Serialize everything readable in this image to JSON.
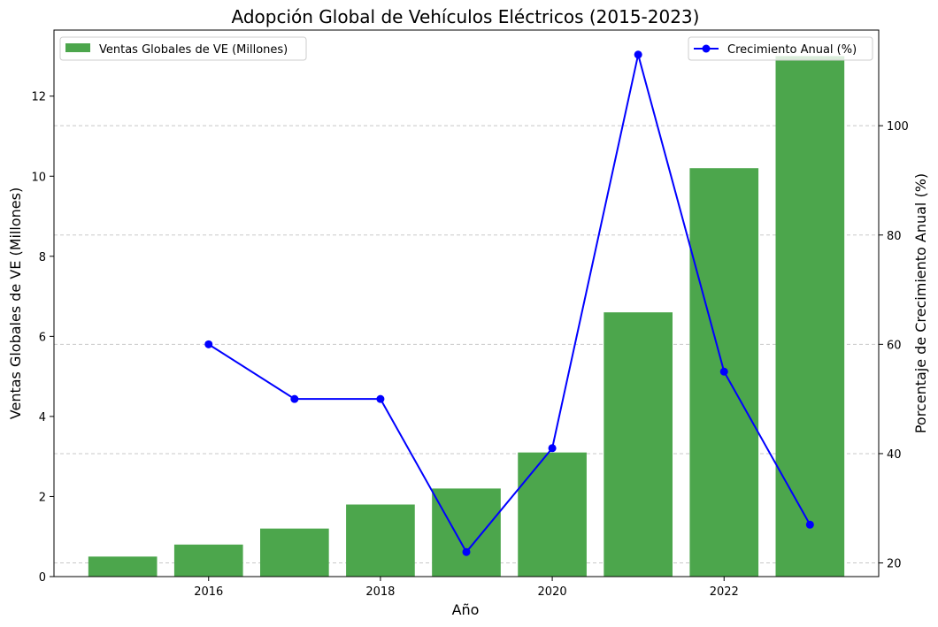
{
  "chart_data": {
    "type": "bar+line",
    "title": "Adopción Global de Vehículos Eléctricos (2015-2023)",
    "xlabel": "Año",
    "ylabel_left": "Ventas Globales de VE (Millones)",
    "ylabel_right": "Porcentaje de Crecimiento Anual (%)",
    "x": [
      2015,
      2016,
      2017,
      2018,
      2019,
      2020,
      2021,
      2022,
      2023
    ],
    "x_ticks": [
      2016,
      2018,
      2020,
      2022
    ],
    "xlim": [
      2014.2,
      2023.8
    ],
    "ylim_left": [
      0,
      13.65
    ],
    "yticks_left": [
      0,
      2,
      4,
      6,
      8,
      10,
      12
    ],
    "ylim_right": [
      17.5,
      117.5
    ],
    "yticks_right": [
      20,
      40,
      60,
      80,
      100
    ],
    "grid": "y-dashed-right-axis",
    "series": [
      {
        "name": "Ventas Globales de VE (Millones)",
        "type": "bar",
        "axis": "left",
        "color": "#4ca64c",
        "x": [
          2015,
          2016,
          2017,
          2018,
          2019,
          2020,
          2021,
          2022,
          2023
        ],
        "values": [
          0.5,
          0.8,
          1.2,
          1.8,
          2.2,
          3.1,
          6.6,
          10.2,
          13.0
        ],
        "legend": "upper-left"
      },
      {
        "name": "Crecimiento Anual (%)",
        "type": "line",
        "axis": "right",
        "color": "#0000ff",
        "marker": "circle",
        "x": [
          2016,
          2017,
          2018,
          2019,
          2020,
          2021,
          2022,
          2023
        ],
        "values": [
          60,
          50,
          50,
          22,
          41,
          113,
          55,
          27
        ],
        "legend": "upper-right"
      }
    ],
    "left_label_color": "#008000",
    "right_label_color": "#0000ff"
  }
}
